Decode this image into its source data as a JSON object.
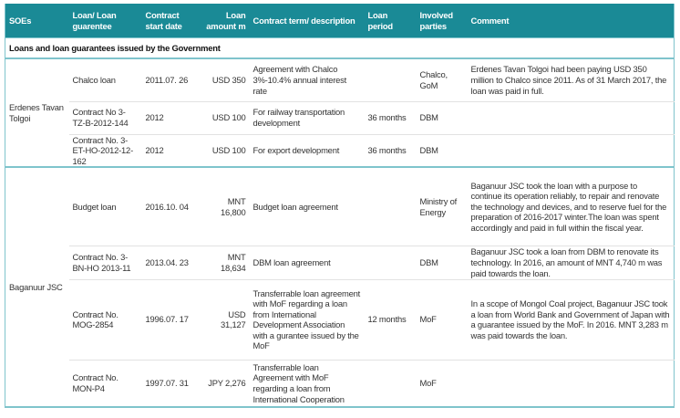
{
  "headers": [
    "SOEs",
    "Loan/ Loan guarentee",
    "Contract start date",
    "Loan amount m",
    "Contract term/ description",
    "Loan period",
    "Involved parties",
    "Comment"
  ],
  "section": "Loans and loan guarantees issued by the Government",
  "groups": [
    {
      "soe": "Erdenes Tavan Tolgoi",
      "rows": [
        {
          "loan": "Chalco loan",
          "date": "2011.07. 26",
          "amount": "USD 350",
          "term": "Agreement with Chalco 3%-10.4% annual interest rate",
          "period": "",
          "parties": "Chalco, GoM",
          "comment": "Erdenes Tavan Tolgoi had been paying USD 350 million to Chalco since 2011. As of 31 March 2017, the loan was paid in full."
        },
        {
          "loan": "Contract No 3-TZ-B-2012-144",
          "date": "2012",
          "amount": "USD 100",
          "term": "For railway transportation development",
          "period": "36 months",
          "parties": "DBM",
          "comment": ""
        },
        {
          "loan": "Contract No. 3-ET-HO-2012-12-162",
          "date": "2012",
          "amount": "USD 100",
          "term": "For export development",
          "period": "36 months",
          "parties": "DBM",
          "comment": ""
        }
      ]
    },
    {
      "soe": "Baganuur JSC",
      "rows": [
        {
          "loan": "Budget loan",
          "date": "2016.10. 04",
          "amount": "MNT 16,800",
          "term": "Budget loan agreement",
          "period": "",
          "parties": "Ministry of Energy",
          "comment": "Baganuur JSC took the loan with a purpose to continue its operation reliably, to repair and renovate the technology and devices, and to reserve fuel for the preparation of 2016-2017 winter.The loan was spent accordingly and paid in full within the fiscal year."
        },
        {
          "loan": "Contract No. 3-BN-HO 2013-11",
          "date": "2013.04. 23",
          "amount": "MNT 18,634",
          "term": "DBM loan agreement",
          "period": "",
          "parties": "DBM",
          "comment": "Baganuur JSC took a loan from DBM to renovate its technology. In 2016, an amount of MNT 4,740 m was paid towards the loan."
        },
        {
          "loan": "Contract No. MOG-2854",
          "date": "1996.07. 17",
          "amount": "USD 31,127",
          "term": "Transferrable loan agreement with MoF regarding a loan from International Development Association with a gurantee issued by the MoF",
          "period": "12 months",
          "parties": "MoF",
          "comment": "In a scope of Mongol Coal project, Baganuur JSC took a loan from World Bank and Government of Japan with a guarantee issued by the MoF. In 2016. MNT 3,283 m was paid towards the loan."
        },
        {
          "loan": "Contract No. MON-P4",
          "date": "1997.07. 31",
          "amount": "JPY 2,276",
          "term": "Transferrable loan Agreement with MoF regarding a loan from International Cooperation",
          "period": "",
          "parties": "MoF",
          "comment": ""
        }
      ]
    }
  ]
}
